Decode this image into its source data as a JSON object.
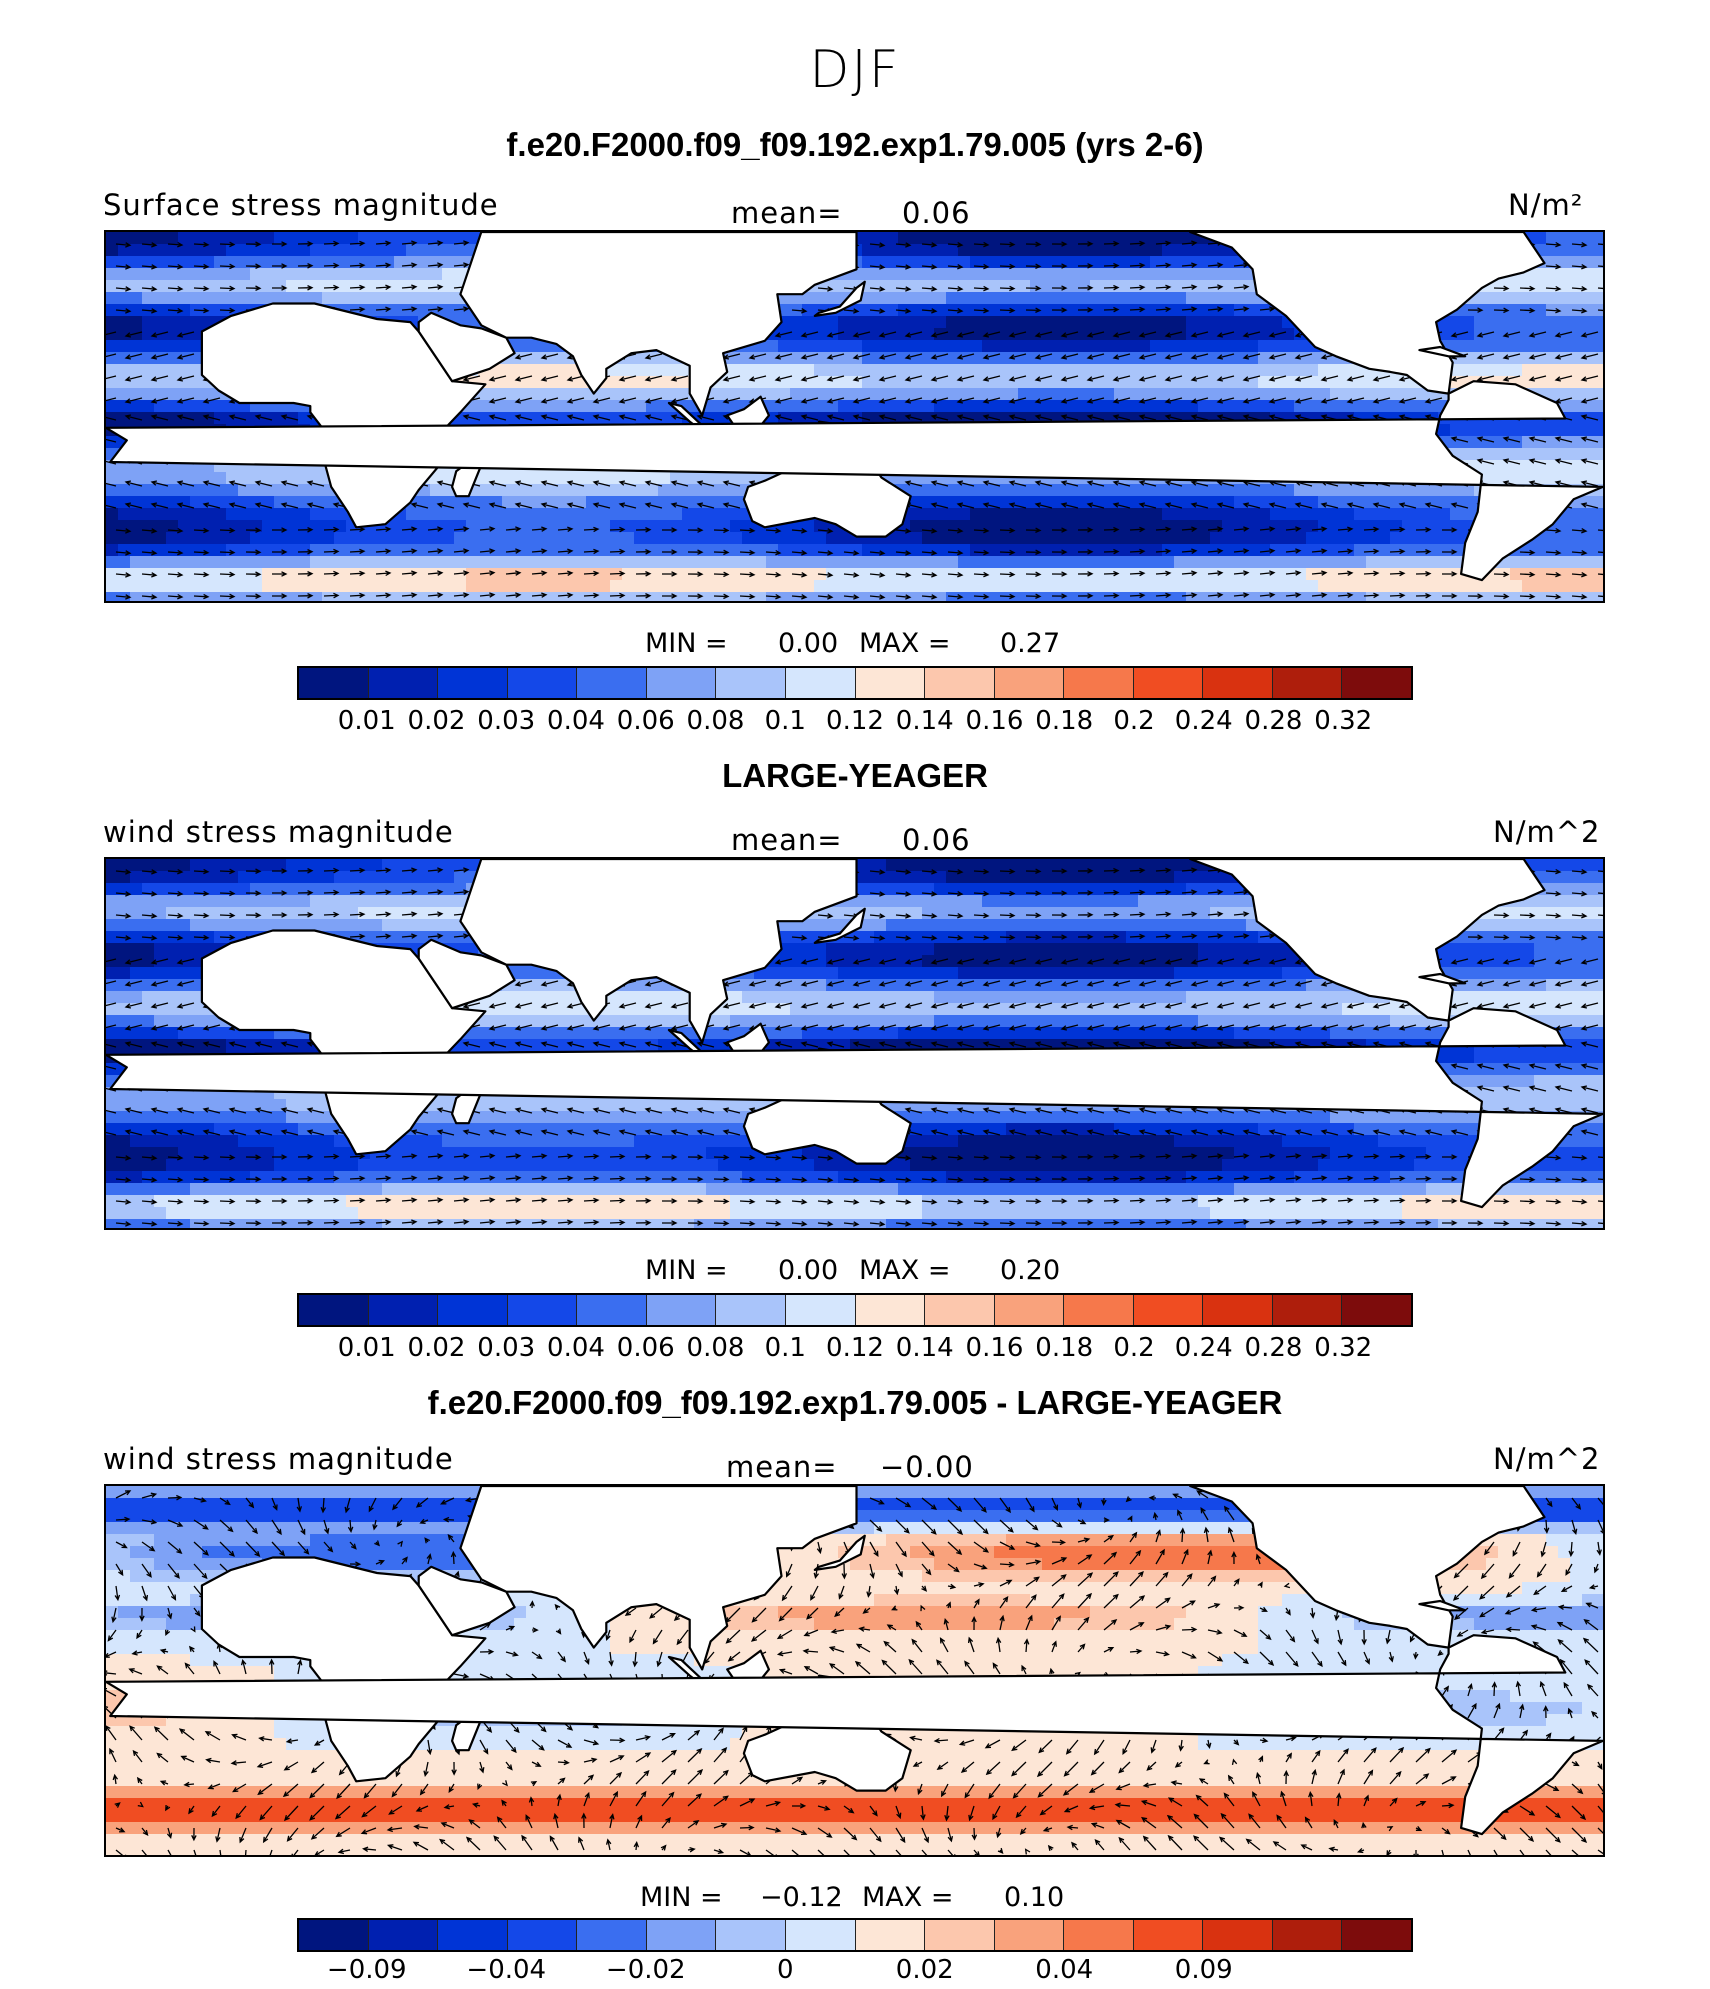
{
  "season": "DJF",
  "colors": {
    "scale": [
      "#00157f",
      "#0020b0",
      "#0034d6",
      "#1448e8",
      "#3a6ef0",
      "#7ea2f6",
      "#a9c4fa",
      "#d5e6fd",
      "#fde6d6",
      "#fcc7ad",
      "#f9a27c",
      "#f6784b",
      "#f04d22",
      "#d93210",
      "#ae1e0c",
      "#7d0c0c"
    ],
    "land": "#ffffff",
    "coast": "#000000",
    "arrow": "#000000"
  },
  "panels": [
    {
      "title": "f.e20.F2000.f09_f09.192.exp1.79.005 (yrs 2-6)",
      "left_label": "Surface stress magnitude",
      "mean_label": "mean=",
      "mean_value": "0.06",
      "units": "N/m²",
      "min_label": "MIN =",
      "min_value": "0.00",
      "max_label": "MAX =",
      "max_value": "0.27",
      "ticks": [
        "0.01",
        "0.02",
        "0.03",
        "0.04",
        "0.06",
        "0.08",
        "0.1",
        "0.12",
        "0.14",
        "0.16",
        "0.18",
        "0.2",
        "0.24",
        "0.28",
        "0.32"
      ],
      "diff": false
    },
    {
      "title": "LARGE-YEAGER",
      "left_label": "wind stress magnitude",
      "mean_label": "mean=",
      "mean_value": "0.06",
      "units": "N/m^2",
      "min_label": "MIN =",
      "min_value": "0.00",
      "max_label": "MAX =",
      "max_value": "0.20",
      "ticks": [
        "0.01",
        "0.02",
        "0.03",
        "0.04",
        "0.06",
        "0.08",
        "0.1",
        "0.12",
        "0.14",
        "0.16",
        "0.18",
        "0.2",
        "0.24",
        "0.28",
        "0.32"
      ],
      "diff": false
    },
    {
      "title": "f.e20.F2000.f09_f09.192.exp1.79.005 - LARGE-YEAGER",
      "left_label": "wind stress magnitude",
      "mean_label": "mean=",
      "mean_value": "−0.00",
      "units": "N/m^2",
      "min_label": "MIN =",
      "min_value": "−0.12",
      "max_label": "MAX =",
      "max_value": "0.10",
      "ticks": [
        "−0.09",
        "",
        "−0.04",
        "",
        "−0.02",
        "",
        "0",
        "",
        "0.02",
        "",
        "0.04",
        "",
        "0.09"
      ],
      "diff": true
    }
  ]
}
